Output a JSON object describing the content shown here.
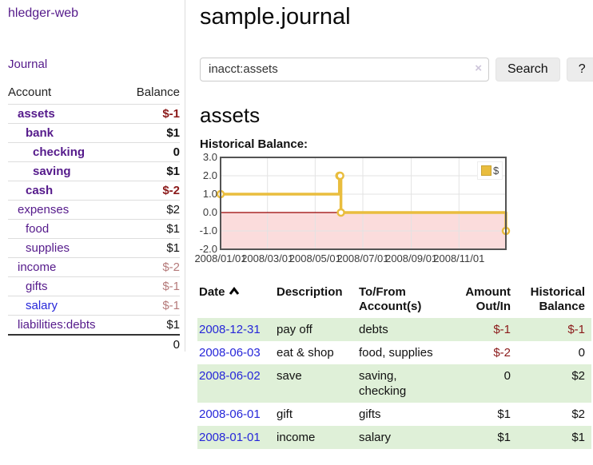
{
  "app": {
    "brand": "hledger-web",
    "nav": {
      "journal": "Journal"
    }
  },
  "sidebar": {
    "columns": {
      "account": "Account",
      "balance": "Balance"
    },
    "accounts": [
      {
        "name": "assets",
        "indent": 1,
        "bold": true,
        "balance": "$-1",
        "balance_style": "neg-strong"
      },
      {
        "name": "bank",
        "indent": 2,
        "bold": true,
        "balance": "$1",
        "balance_style": "pos"
      },
      {
        "name": "checking",
        "indent": 3,
        "bold": true,
        "balance": "0",
        "balance_style": "pos"
      },
      {
        "name": "saving",
        "indent": 3,
        "bold": true,
        "balance": "$1",
        "balance_style": "pos"
      },
      {
        "name": "cash",
        "indent": 2,
        "bold": true,
        "balance": "$-2",
        "balance_style": "neg-strong"
      },
      {
        "name": "expenses",
        "indent": 1,
        "bold": false,
        "balance": "$2",
        "balance_style": "pos"
      },
      {
        "name": "food",
        "indent": 2,
        "bold": false,
        "balance": "$1",
        "balance_style": "pos"
      },
      {
        "name": "supplies",
        "indent": 2,
        "bold": false,
        "balance": "$1",
        "balance_style": "pos"
      },
      {
        "name": "income",
        "indent": 1,
        "bold": false,
        "balance": "$-2",
        "balance_style": "neg-soft"
      },
      {
        "name": "gifts",
        "indent": 2,
        "bold": false,
        "balance": "$-1",
        "balance_style": "neg-soft"
      },
      {
        "name": "salary",
        "indent": 2,
        "bold": false,
        "link_color": "blue",
        "balance": "$-1",
        "balance_style": "neg-soft"
      },
      {
        "name": "liabilities:debts",
        "indent": 1,
        "bold": false,
        "balance": "$1",
        "balance_style": "pos"
      }
    ],
    "total": "0"
  },
  "page": {
    "title": "sample.journal",
    "account_heading": "assets",
    "chart_heading": "Historical Balance:"
  },
  "search": {
    "value": "inacct:assets",
    "clear": "×",
    "button_label": "Search",
    "help_label": "?"
  },
  "chart_data": {
    "type": "line",
    "steps": true,
    "title": "Historical Balance",
    "series": [
      {
        "name": "$",
        "color": "#e9bd3e",
        "points": [
          [
            "2008-01-01",
            1
          ],
          [
            "2008-06-01",
            2
          ],
          [
            "2008-06-02",
            2
          ],
          [
            "2008-06-03",
            0
          ],
          [
            "2008-12-31",
            -1
          ]
        ]
      }
    ],
    "x_range": [
      "2008-01-01",
      "2008-12-31"
    ],
    "x_ticks": [
      "2008/01/01",
      "2008/03/01",
      "2008/05/01",
      "2008/07/01",
      "2008/09/01",
      "2008/11/01"
    ],
    "y_ticks": [
      3.0,
      2.0,
      1.0,
      0.0,
      -1.0,
      -2.0
    ],
    "ylim": [
      -2,
      3
    ],
    "grid": true,
    "legend": [
      "$"
    ],
    "legend_position": "top-right",
    "negative_region_color": "#fbdcdc",
    "zero_line_color": "#990000",
    "grid_color": "#e3e3e3",
    "border_color": "#545454"
  },
  "register": {
    "headers": [
      {
        "lines": [
          "Date"
        ],
        "sort": "asc"
      },
      {
        "lines": [
          "Description"
        ]
      },
      {
        "lines": [
          "To/From",
          "Account(s)"
        ]
      },
      {
        "lines": [
          "Amount",
          "Out/In"
        ],
        "align": "right"
      },
      {
        "lines": [
          "Historical",
          "Balance"
        ],
        "align": "right"
      }
    ],
    "rows": [
      {
        "date": "2008-12-31",
        "description": "pay off",
        "accounts": [
          "debts"
        ],
        "amount": "$-1",
        "amount_style": "neg",
        "balance": "$-1",
        "balance_style": "neg"
      },
      {
        "date": "2008-06-03",
        "description": "eat & shop",
        "accounts": [
          "food, supplies"
        ],
        "amount": "$-2",
        "amount_style": "neg",
        "balance": "0",
        "balance_style": "pos"
      },
      {
        "date": "2008-06-02",
        "description": "save",
        "accounts": [
          "saving,",
          "checking"
        ],
        "amount": "0",
        "amount_style": "pos",
        "balance": "$2",
        "balance_style": "pos"
      },
      {
        "date": "2008-06-01",
        "description": "gift",
        "accounts": [
          "gifts"
        ],
        "amount": "$1",
        "amount_style": "pos",
        "balance": "$2",
        "balance_style": "pos"
      },
      {
        "date": "2008-01-01",
        "description": "income",
        "accounts": [
          "salary"
        ],
        "amount": "$1",
        "amount_style": "pos",
        "balance": "$1",
        "balance_style": "pos"
      }
    ]
  },
  "colors": {
    "accent_purple": "#551a8b",
    "link_blue": "#2626d9",
    "neg_strong": "#8b1a1a",
    "neg_soft": "#b57a7a",
    "row_green": "#dff0d8",
    "series_gold": "#e9bd3e"
  }
}
